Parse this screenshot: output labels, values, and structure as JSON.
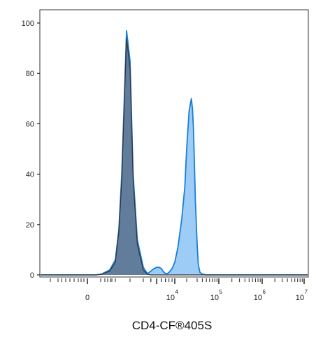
{
  "chart_data": {
    "type": "area",
    "xlabel": "CD4-CF®405S",
    "ylabel": "",
    "title": "",
    "ylim": [
      0,
      100
    ],
    "yticks": [
      0,
      20,
      40,
      60,
      80,
      100
    ],
    "x_scale": "biexponential",
    "xticks": [
      {
        "base": "0",
        "exp": ""
      },
      {
        "base": "10",
        "exp": "4"
      },
      {
        "base": "10",
        "exp": "5"
      },
      {
        "base": "10",
        "exp": "6"
      },
      {
        "base": "10",
        "exp": "7"
      }
    ],
    "series": [
      {
        "color": "#1a7fd6",
        "fill": "#8cc4f4",
        "x": [
          0,
          300,
          500,
          800,
          1000,
          1200,
          1400,
          1600,
          1800,
          2000,
          2200,
          2500,
          3000,
          3500,
          4000,
          4500,
          5000,
          5500,
          6000,
          6500,
          7000,
          7500,
          8000,
          9000,
          10000,
          12000,
          15000,
          18000,
          20000,
          22000,
          24000,
          25000,
          26000,
          27000,
          28000,
          30000,
          32000,
          35000,
          40000,
          50000,
          70000,
          100000,
          1000000,
          10000000
        ],
        "values": [
          0,
          0,
          0.3,
          2,
          6,
          18,
          40,
          70,
          97,
          85,
          40,
          14,
          3,
          0.5,
          1.5,
          2.5,
          3,
          3,
          2.5,
          1.2,
          0.6,
          0.5,
          1,
          2.5,
          5,
          11,
          22,
          35,
          50,
          65,
          70,
          66,
          58,
          44,
          30,
          12,
          4,
          1,
          0.3,
          0,
          0,
          0,
          0,
          0
        ]
      },
      {
        "color": "#333333",
        "fill": "#5b7491",
        "x": [
          0,
          300,
          500,
          800,
          1000,
          1200,
          1400,
          1600,
          1800,
          2000,
          2200,
          2500,
          3000,
          3500,
          4000,
          5000,
          10000
        ],
        "values": [
          0,
          0,
          0.2,
          1.5,
          5,
          17,
          38,
          68,
          94,
          82,
          38,
          12,
          2,
          0.3,
          0,
          0,
          0
        ]
      }
    ]
  }
}
